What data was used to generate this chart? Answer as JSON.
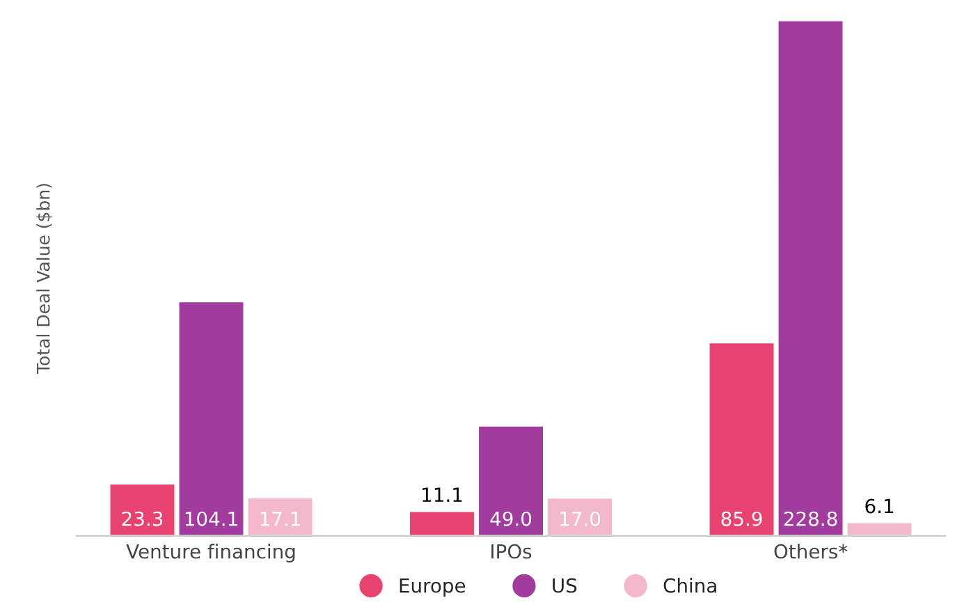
{
  "chart_data": {
    "type": "bar",
    "ylabel": "Total Deal Value ($bn)",
    "categories": [
      "Venture financing",
      "IPOs",
      "Others*"
    ],
    "series": [
      {
        "name": "Europe",
        "color": "#e8436e",
        "values": [
          23.3,
          11.1,
          85.9
        ],
        "value_labels": [
          "23.3",
          "11.1",
          "85.9"
        ]
      },
      {
        "name": "US",
        "color": "#a23b9e",
        "values": [
          104.1,
          49.0,
          228.8
        ],
        "value_labels": [
          "104.1",
          "49.0",
          "228.8"
        ]
      },
      {
        "name": "China",
        "color": "#f4b8cc",
        "values": [
          17.1,
          17.0,
          6.1
        ],
        "value_labels": [
          "17.1",
          "17.0",
          "6.1"
        ]
      }
    ],
    "legend": "bottom",
    "grid": false,
    "tick_labels": "x"
  }
}
